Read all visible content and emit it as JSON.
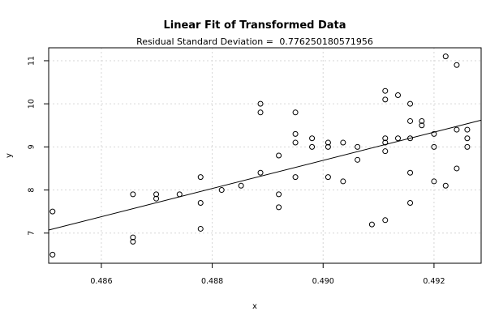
{
  "chart_data": {
    "type": "scatter",
    "title": "Linear Fit of Transformed Data",
    "subtitle_label": "Residual Standard Deviation = ",
    "subtitle_value": "0.776250180571956",
    "xlabel": "x",
    "ylabel": "y",
    "xlim": [
      0.48505,
      0.49285
    ],
    "ylim": [
      6.3,
      11.3
    ],
    "xticks": [
      0.486,
      0.488,
      0.49,
      0.492
    ],
    "xtick_labels": [
      "0.486",
      "0.488",
      "0.490",
      "0.492"
    ],
    "yticks": [
      7,
      8,
      9,
      10,
      11
    ],
    "ytick_labels": [
      "7",
      "8",
      "9",
      "10",
      "11"
    ],
    "grid": true,
    "fit_line": {
      "x": [
        0.48505,
        0.49285
      ],
      "y": [
        7.07,
        9.62
      ]
    },
    "points": [
      {
        "x": 0.48512,
        "y": 7.5
      },
      {
        "x": 0.48512,
        "y": 6.5
      },
      {
        "x": 0.48657,
        "y": 7.9
      },
      {
        "x": 0.48657,
        "y": 6.9
      },
      {
        "x": 0.48657,
        "y": 6.8
      },
      {
        "x": 0.48699,
        "y": 7.9
      },
      {
        "x": 0.48699,
        "y": 7.8
      },
      {
        "x": 0.48741,
        "y": 7.9
      },
      {
        "x": 0.48779,
        "y": 8.3
      },
      {
        "x": 0.48779,
        "y": 7.7
      },
      {
        "x": 0.48779,
        "y": 7.1
      },
      {
        "x": 0.48817,
        "y": 8.0
      },
      {
        "x": 0.48852,
        "y": 8.1
      },
      {
        "x": 0.48887,
        "y": 10.0
      },
      {
        "x": 0.48887,
        "y": 9.8
      },
      {
        "x": 0.48887,
        "y": 8.4
      },
      {
        "x": 0.4892,
        "y": 8.8
      },
      {
        "x": 0.4892,
        "y": 7.9
      },
      {
        "x": 0.4892,
        "y": 7.6
      },
      {
        "x": 0.4895,
        "y": 9.8
      },
      {
        "x": 0.4895,
        "y": 9.3
      },
      {
        "x": 0.4895,
        "y": 9.1
      },
      {
        "x": 0.4895,
        "y": 8.3
      },
      {
        "x": 0.4898,
        "y": 9.2
      },
      {
        "x": 0.4898,
        "y": 9.0
      },
      {
        "x": 0.49009,
        "y": 9.1
      },
      {
        "x": 0.49009,
        "y": 9.0
      },
      {
        "x": 0.49009,
        "y": 8.3
      },
      {
        "x": 0.49036,
        "y": 9.1
      },
      {
        "x": 0.49036,
        "y": 8.2
      },
      {
        "x": 0.49062,
        "y": 9.0
      },
      {
        "x": 0.49062,
        "y": 8.7
      },
      {
        "x": 0.49088,
        "y": 7.2
      },
      {
        "x": 0.49112,
        "y": 10.3
      },
      {
        "x": 0.49112,
        "y": 10.1
      },
      {
        "x": 0.49112,
        "y": 9.2
      },
      {
        "x": 0.49112,
        "y": 9.1
      },
      {
        "x": 0.49112,
        "y": 8.9
      },
      {
        "x": 0.49112,
        "y": 7.3
      },
      {
        "x": 0.49135,
        "y": 10.2
      },
      {
        "x": 0.49135,
        "y": 9.2
      },
      {
        "x": 0.49157,
        "y": 10.0
      },
      {
        "x": 0.49157,
        "y": 9.6
      },
      {
        "x": 0.49157,
        "y": 9.2
      },
      {
        "x": 0.49157,
        "y": 8.4
      },
      {
        "x": 0.49157,
        "y": 7.7
      },
      {
        "x": 0.49178,
        "y": 9.6
      },
      {
        "x": 0.49178,
        "y": 9.5
      },
      {
        "x": 0.492,
        "y": 9.3
      },
      {
        "x": 0.492,
        "y": 9.0
      },
      {
        "x": 0.492,
        "y": 8.2
      },
      {
        "x": 0.49221,
        "y": 11.1
      },
      {
        "x": 0.49221,
        "y": 8.1
      },
      {
        "x": 0.49241,
        "y": 10.9
      },
      {
        "x": 0.49241,
        "y": 9.4
      },
      {
        "x": 0.49241,
        "y": 8.5
      },
      {
        "x": 0.4926,
        "y": 9.4
      },
      {
        "x": 0.4926,
        "y": 9.2
      },
      {
        "x": 0.4926,
        "y": 9.0
      }
    ]
  }
}
